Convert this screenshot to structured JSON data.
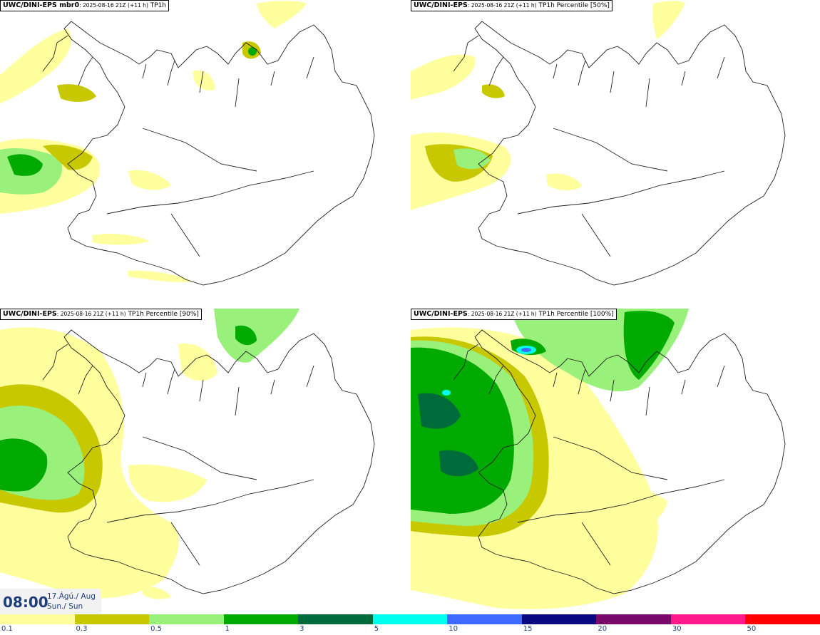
{
  "panels": [
    {
      "model": "UWC/DINI-EPS mbr0",
      "run": "2025-08-16 21Z (+11 h)",
      "field": "TP1h"
    },
    {
      "model": "UWC/DINI-EPS",
      "run": "2025-08-16 21Z (+11 h)",
      "field": "TP1h Percentile [50%]"
    },
    {
      "model": "UWC/DINI-EPS",
      "run": "2025-08-16 21Z (+11 h)",
      "field": "TP1h Percentile [90%]"
    },
    {
      "model": "UWC/DINI-EPS",
      "run": "2025-08-16 21Z (+11 h)",
      "field": "TP1h Percentile [100%]"
    }
  ],
  "valid_time": {
    "clock": "08:00",
    "date_line1": "17.Ágú./ Aug",
    "date_line2": "Sun./ Sun"
  },
  "legend": {
    "ticks": [
      "0.1",
      "0.3",
      "0.5",
      "1",
      "3",
      "5",
      "10",
      "15",
      "20",
      "30",
      "50"
    ],
    "colors": [
      "#ffff9e",
      "#c8c800",
      "#99f07a",
      "#00aa00",
      "#006b3a",
      "#00ffee",
      "#3f6aff",
      "#0a0a80",
      "#7a0a6a",
      "#ff1a8c",
      "#ff0000"
    ]
  },
  "colors": {
    "label_text": "#1f3f7a",
    "coastline": "#222222"
  }
}
